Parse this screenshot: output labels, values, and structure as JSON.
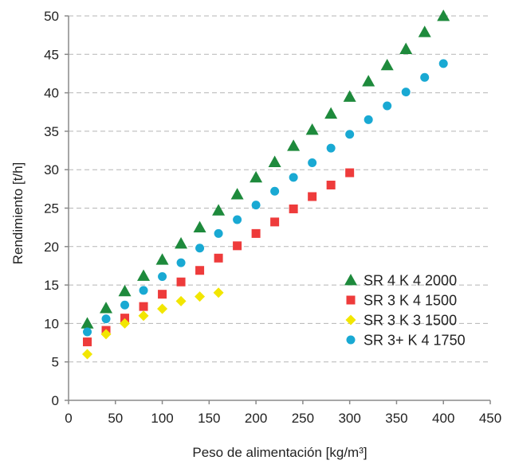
{
  "chart_data": {
    "type": "scatter",
    "title": "",
    "xlabel": "Peso de alimentación  [kg/m³]",
    "ylabel": "Rendimiento [t/h]",
    "xlim": [
      0,
      450
    ],
    "ylim": [
      0,
      50
    ],
    "xticks": [
      0,
      50,
      100,
      150,
      200,
      250,
      300,
      350,
      400,
      450
    ],
    "yticks": [
      0,
      5,
      10,
      15,
      20,
      25,
      30,
      35,
      40,
      45,
      50
    ],
    "grid": "horizontal dashed",
    "legend_position": "bottom-right",
    "series": [
      {
        "name": "SR 4 K 4 2000",
        "marker": "triangle",
        "color": "#1e8a3c",
        "x": [
          20,
          40,
          60,
          80,
          100,
          120,
          140,
          160,
          180,
          200,
          220,
          240,
          260,
          280,
          300,
          320,
          340,
          360,
          380,
          400
        ],
        "y": [
          10,
          12,
          14.2,
          16.2,
          18.3,
          20.4,
          22.5,
          24.7,
          26.8,
          29,
          31,
          33.1,
          35.2,
          37.3,
          39.5,
          41.5,
          43.6,
          45.7,
          47.9,
          50
        ]
      },
      {
        "name": "SR 3 K 4 1500",
        "marker": "square",
        "color": "#ee3b3b",
        "x": [
          20,
          40,
          60,
          80,
          100,
          120,
          140,
          160,
          180,
          200,
          220,
          240,
          260,
          280,
          300
        ],
        "y": [
          7.6,
          9.1,
          10.7,
          12.2,
          13.8,
          15.4,
          16.9,
          18.5,
          20.1,
          21.7,
          23.2,
          24.9,
          26.5,
          28,
          29.6
        ]
      },
      {
        "name": "SR 3 K 3 1500",
        "marker": "diamond",
        "color": "#f2e600",
        "x": [
          20,
          40,
          60,
          80,
          100,
          120,
          140,
          160
        ],
        "y": [
          6,
          8.6,
          10,
          11,
          11.9,
          12.9,
          13.5,
          14
        ]
      },
      {
        "name": "SR 3+ K 4 1750",
        "marker": "circle",
        "color": "#19a9d3",
        "x": [
          20,
          40,
          60,
          80,
          100,
          120,
          140,
          160,
          180,
          200,
          220,
          240,
          260,
          280,
          300,
          320,
          340,
          360,
          380,
          400
        ],
        "y": [
          8.9,
          10.6,
          12.4,
          14.3,
          16.1,
          17.9,
          19.8,
          21.7,
          23.5,
          25.4,
          27.2,
          29,
          30.9,
          32.8,
          34.6,
          36.5,
          38.3,
          40.1,
          42,
          43.8
        ]
      }
    ]
  }
}
